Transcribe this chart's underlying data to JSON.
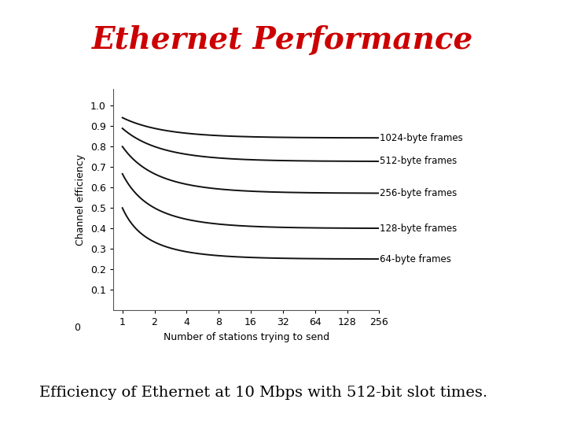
{
  "title": "Ethernet Performance",
  "subtitle": "Efficiency of Ethernet at 10 Mbps with 512-bit slot times.",
  "xlabel": "Number of stations trying to send",
  "ylabel": "Channel efficiency",
  "title_color": "#cc0000",
  "title_fontsize": 28,
  "subtitle_fontsize": 14,
  "frame_sizes_bytes": [
    1024,
    512,
    256,
    128,
    64
  ],
  "frame_labels": [
    "1024-byte frames",
    "512-byte frames",
    "256-byte frames",
    "128-byte frames",
    "64-byte frames"
  ],
  "slot_bits": 512,
  "x_ticks_vals": [
    1,
    2,
    4,
    8,
    16,
    32,
    64,
    128,
    256
  ],
  "x_ticks_labels": [
    "1",
    "2",
    "4",
    "8",
    "16",
    "32",
    "64",
    "128",
    "256"
  ],
  "y_ticks": [
    0.1,
    0.2,
    0.3,
    0.4,
    0.5,
    0.6,
    0.7,
    0.8,
    0.9,
    1.0
  ],
  "ylim": [
    0.0,
    1.08
  ],
  "line_color": "#111111",
  "line_width": 1.4,
  "background_color": "#ffffff",
  "plot_bg": "#ffffff",
  "label_fontsize": 9,
  "axis_label_fontsize": 9,
  "annotation_fontsize": 8.5,
  "frame_label_x_positions": [
    256,
    256,
    256,
    256,
    256
  ],
  "frame_label_y_offsets": [
    0.0,
    0.0,
    0.0,
    0.0,
    0.0
  ]
}
